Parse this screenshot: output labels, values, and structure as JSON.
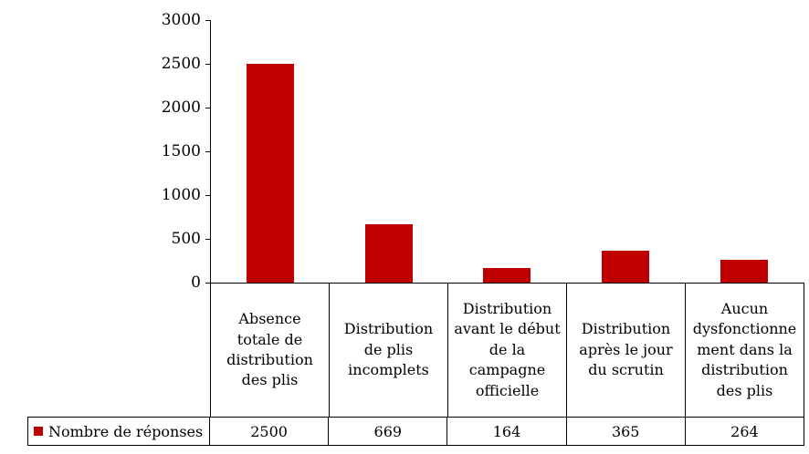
{
  "chart_data": {
    "type": "bar",
    "title": "",
    "xlabel": "",
    "ylabel": "",
    "categories": [
      "Absence totale de distribution des plis",
      "Distribution de plis incomplets",
      "Distribution avant le début de la campagne officielle",
      "Distribution après le jour du scrutin",
      "Aucun dysfonctionnement dans la distribution des plis"
    ],
    "series": [
      {
        "name": "Nombre de réponses",
        "color": "#c00000",
        "values": [
          2500,
          669,
          164,
          365,
          264
        ]
      }
    ],
    "value_labels": [
      "2500",
      "669",
      "164",
      "365",
      "264"
    ],
    "ylim": [
      0,
      3000
    ],
    "yticks": [
      0,
      500,
      1000,
      1500,
      2000,
      2500,
      3000
    ],
    "grid": false,
    "legend_position": "bottom-table"
  }
}
